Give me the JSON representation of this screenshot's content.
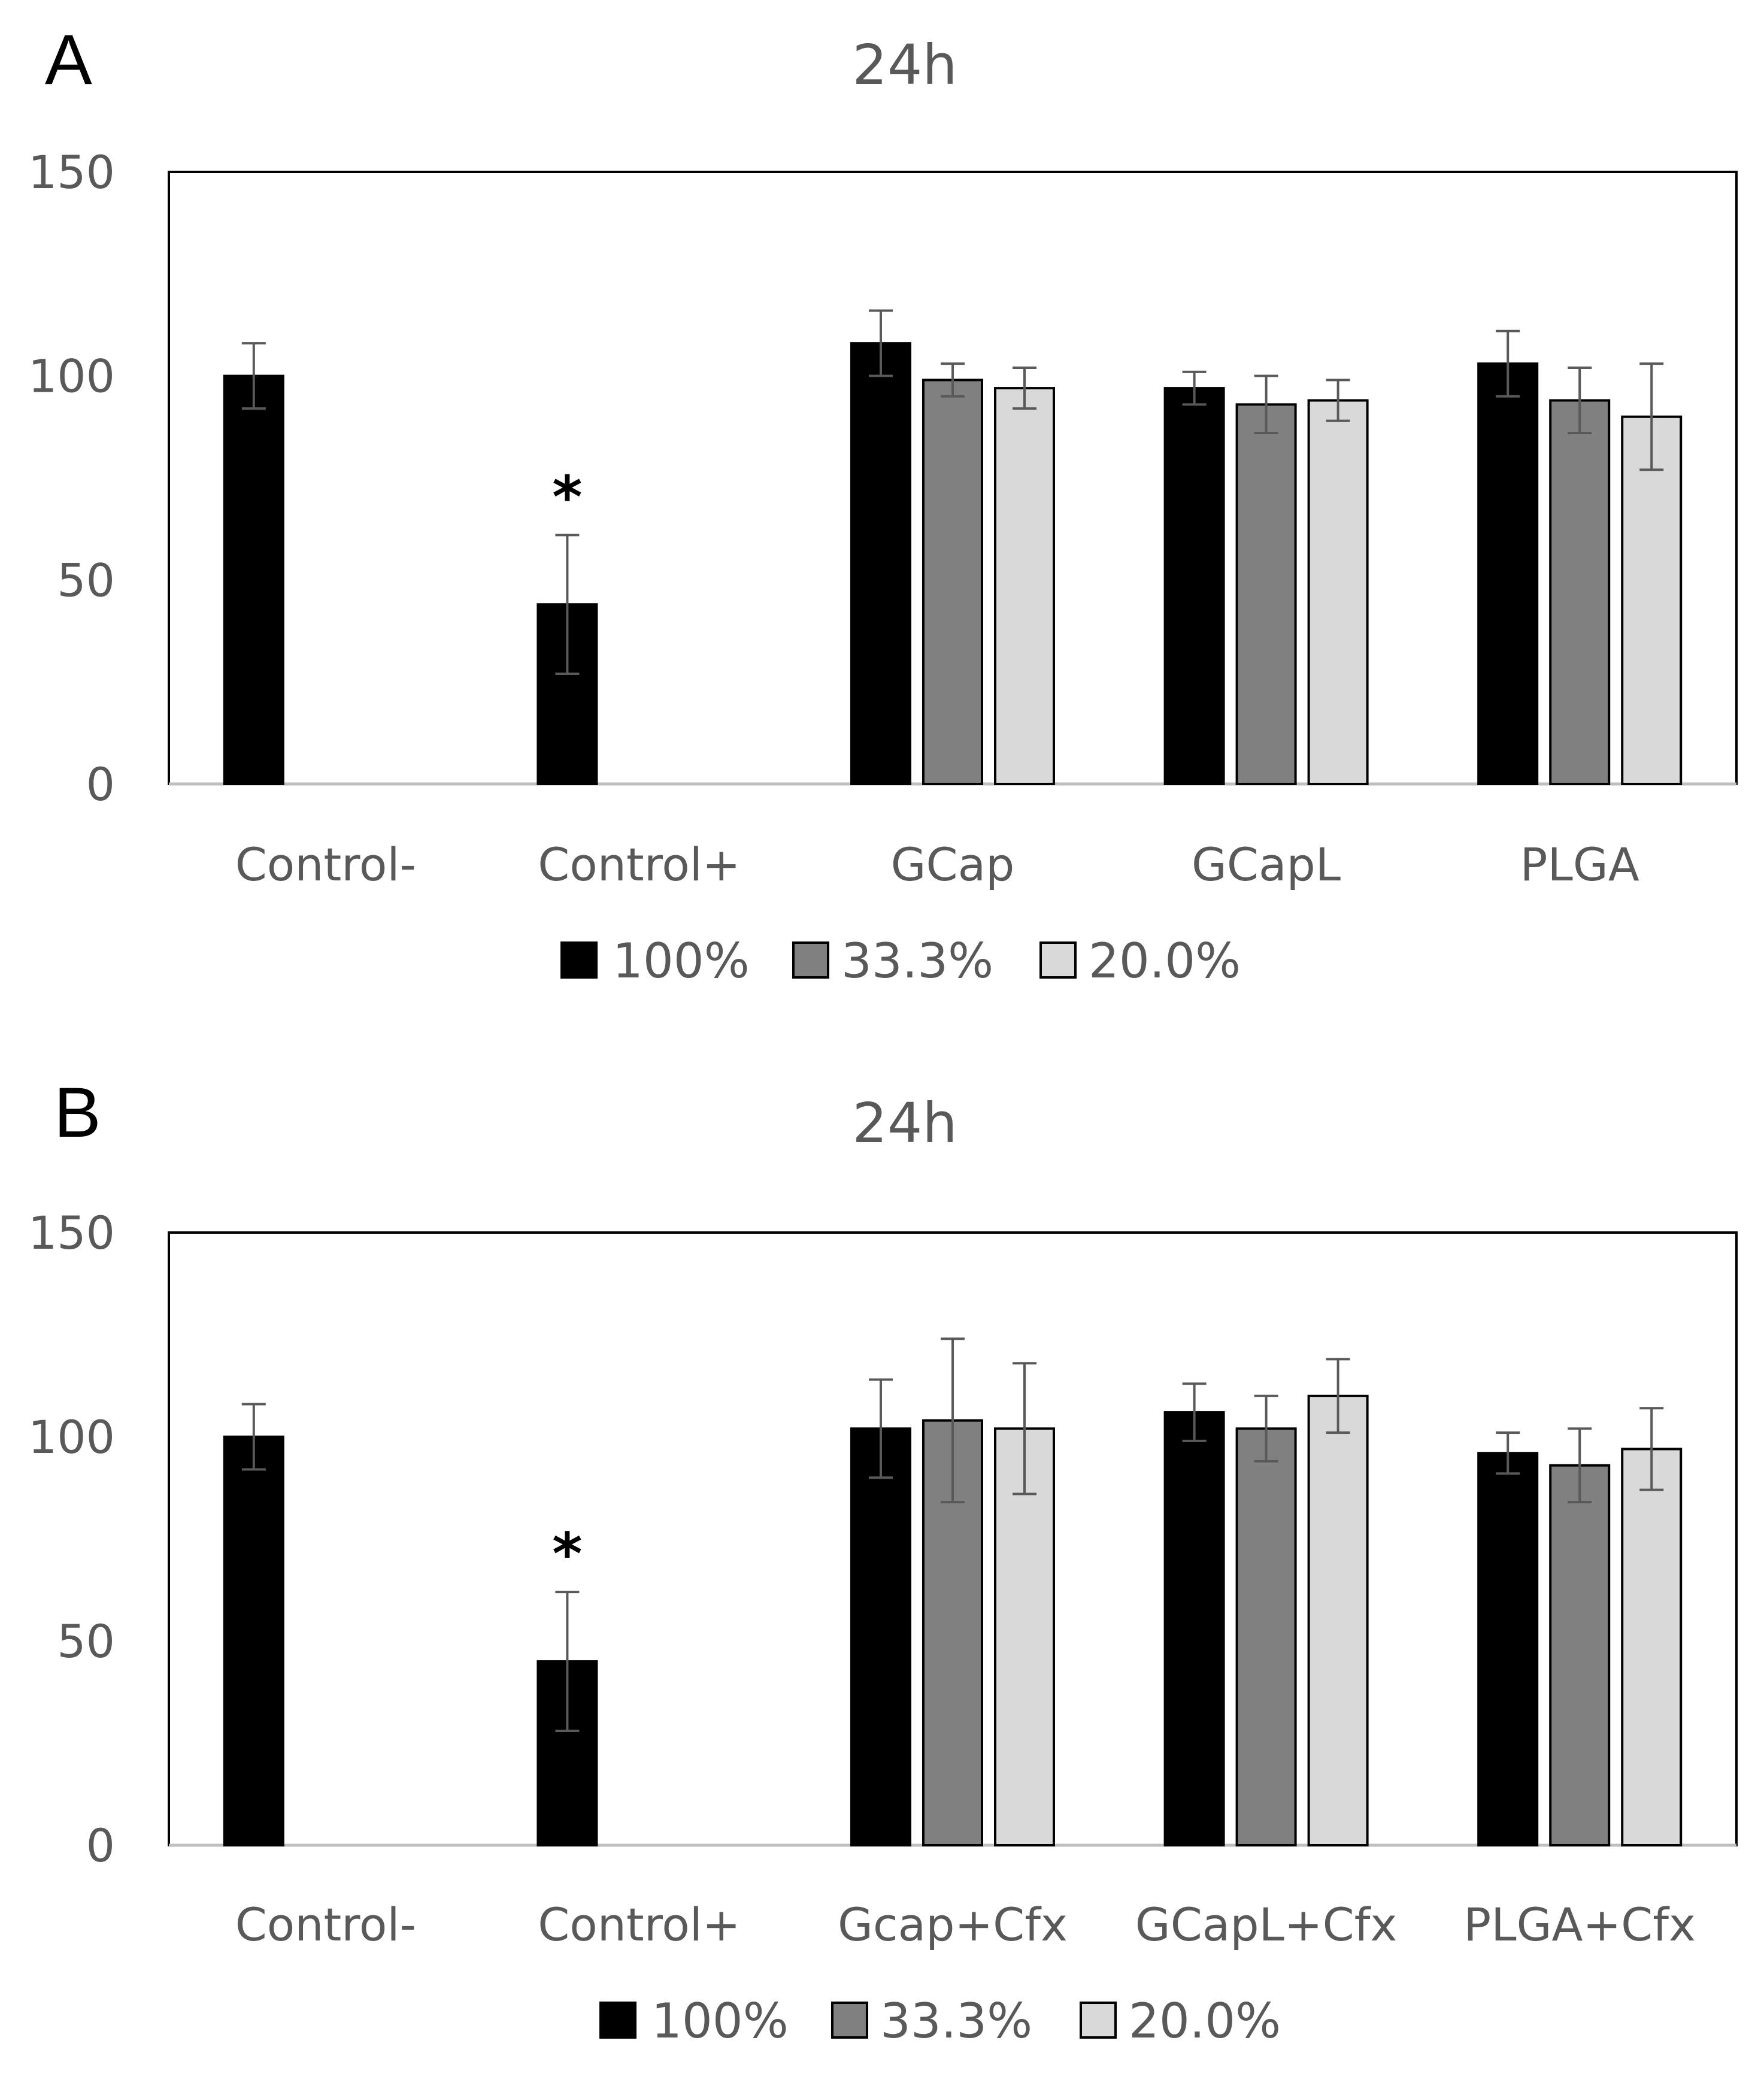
{
  "chart_data": [
    {
      "panel": "A",
      "type": "bar",
      "title": "24h",
      "xlabel": "",
      "ylabel": "",
      "ylim": [
        0,
        150
      ],
      "yticks": [
        0,
        50,
        100,
        150
      ],
      "grid": false,
      "legend_position": "bottom",
      "categories": [
        "Control-",
        "Control+",
        "GCap",
        "GCapL",
        "PLGA"
      ],
      "series": [
        {
          "name": "100%",
          "color": "#000000",
          "values": [
            100,
            44,
            108,
            97,
            103
          ],
          "errors": [
            8,
            17,
            8,
            4,
            8
          ]
        },
        {
          "name": "33.3%",
          "color": "#808080",
          "values": [
            null,
            null,
            99,
            93,
            94
          ],
          "errors": [
            null,
            null,
            4,
            7,
            8
          ]
        },
        {
          "name": "20.0%",
          "color": "#d9d9d9",
          "values": [
            null,
            null,
            97,
            94,
            90
          ],
          "errors": [
            null,
            null,
            5,
            5,
            13
          ]
        }
      ],
      "annotations": [
        {
          "category": "Control+",
          "text": "*"
        }
      ]
    },
    {
      "panel": "B",
      "type": "bar",
      "title": "24h",
      "xlabel": "",
      "ylabel": "",
      "ylim": [
        0,
        150
      ],
      "yticks": [
        0,
        50,
        100,
        150
      ],
      "grid": false,
      "legend_position": "bottom",
      "categories": [
        "Control-",
        "Control+",
        "Gcap+Cfx",
        "GCapL+Cfx",
        "PLGA+Cfx"
      ],
      "series": [
        {
          "name": "100%",
          "color": "#000000",
          "values": [
            100,
            45,
            102,
            106,
            96
          ],
          "errors": [
            8,
            17,
            12,
            7,
            5
          ]
        },
        {
          "name": "33.3%",
          "color": "#808080",
          "values": [
            null,
            null,
            104,
            102,
            93
          ],
          "errors": [
            null,
            null,
            20,
            8,
            9
          ]
        },
        {
          "name": "20.0%",
          "color": "#d9d9d9",
          "values": [
            null,
            null,
            102,
            110,
            97
          ],
          "errors": [
            null,
            null,
            16,
            9,
            10
          ]
        }
      ],
      "annotations": [
        {
          "category": "Control+",
          "text": "*"
        }
      ]
    }
  ]
}
